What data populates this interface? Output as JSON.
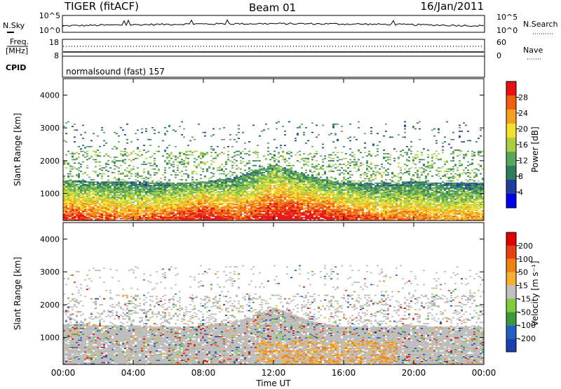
{
  "header": {
    "radar_title": "TIGER (fitACF)",
    "beam_title": "Beam 01",
    "date_title": "16/Jan/2011"
  },
  "summary_panels": {
    "nsky_label": "N.Sky",
    "nsearch_label": "N.Search",
    "noise_ticks_left": [
      "10^5",
      "10^0"
    ],
    "noise_ticks_right": [
      "10^5",
      "10^0"
    ],
    "freq_label_line1": "Freq.",
    "freq_label_line2": "[MHz]",
    "freq_ticks": [
      "18",
      "8"
    ],
    "nave_label": "Nave",
    "nave_ticks": [
      "60",
      "0"
    ],
    "cpid_label": "CPID",
    "cpid_value": "normalsound (fast) 157"
  },
  "colors": {
    "power_scale": [
      "#0000e6",
      "#1f3f9e",
      "#2e7d5a",
      "#5aa65a",
      "#a8d040",
      "#f5e030",
      "#f5a020",
      "#f06010",
      "#e81010"
    ],
    "velocity_scale": [
      "#1a3fb0",
      "#2060c0",
      "#3a9a3a",
      "#7fcc3a",
      "#c0c0c0",
      "#f5b030",
      "#f08010",
      "#e84010",
      "#e00000"
    ],
    "ground_scatter": "#bbbbbb"
  },
  "chart_data": [
    {
      "type": "heatmap",
      "panel": "power",
      "xlabel": "",
      "ylabel": "Slant Range [km]",
      "x_ticks": [
        "00:00",
        "04:00",
        "08:00",
        "12:00",
        "16:00",
        "20:00",
        "00:00"
      ],
      "x_range_hours": [
        0,
        24
      ],
      "y_ticks": [
        "1000",
        "2000",
        "3000",
        "4000"
      ],
      "ylim": [
        180,
        4500
      ],
      "colorbar": {
        "label": "Power [dB]",
        "range": [
          0,
          32
        ],
        "tick_labels": [
          "4",
          "8",
          "12",
          "16",
          "20",
          "24",
          "28"
        ]
      },
      "approx_time_profile": {
        "hours": [
          0,
          2,
          4,
          6,
          8,
          10,
          12,
          14,
          16,
          18,
          20,
          22,
          24
        ],
        "lower_echo_top_km": [
          1400,
          1350,
          1350,
          1300,
          1350,
          1500,
          1900,
          1500,
          1300,
          1300,
          1350,
          1300,
          1300
        ],
        "peak_power_dB": [
          28,
          26,
          24,
          26,
          30,
          26,
          30,
          30,
          28,
          24,
          24,
          22,
          22
        ]
      }
    },
    {
      "type": "heatmap",
      "panel": "velocity",
      "xlabel": "Time UT",
      "ylabel": "Slant Range [km]",
      "x_ticks": [
        "00:00",
        "04:00",
        "08:00",
        "12:00",
        "16:00",
        "20:00",
        "00:00"
      ],
      "x_range_hours": [
        0,
        24
      ],
      "y_ticks": [
        "1000",
        "2000",
        "3000",
        "4000"
      ],
      "ylim": [
        180,
        4500
      ],
      "colorbar": {
        "label": "Velocity [m s⁻¹]",
        "range": [
          -250,
          250
        ],
        "tick_labels": [
          "200",
          "100",
          "50",
          "15",
          "-15",
          "-50",
          "-100",
          "-200"
        ]
      }
    }
  ]
}
